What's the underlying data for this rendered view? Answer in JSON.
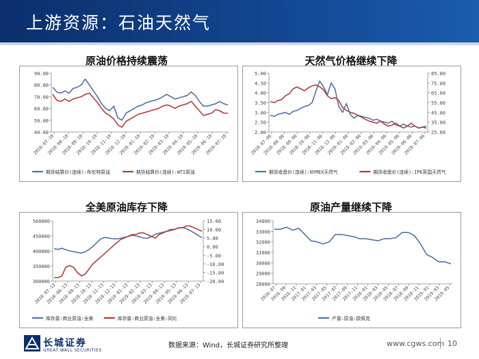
{
  "header": {
    "title": "上游资源：石油天然气"
  },
  "colors": {
    "blue": "#4e72a6",
    "red": "#b43b3b",
    "header": "#12458f"
  },
  "chart_data": [
    {
      "id": "c1",
      "type": "line",
      "title": "原油价格持续震荡",
      "x_ticks": [
        "2018-07-10",
        "2018-08-10",
        "2018-09-10",
        "2018-10-10",
        "2018-11-10",
        "2018-12-10",
        "2019-01-10",
        "2019-02-10",
        "2019-03-10",
        "2019-04-10",
        "2019-05-10",
        "2019-06-10",
        "2019-07-10"
      ],
      "y_ticks": [
        "40.00",
        "50.00",
        "60.00",
        "70.00",
        "80.00",
        "90.00"
      ],
      "ylim": [
        40,
        90
      ],
      "series": [
        {
          "name": "期货结算价(连续):布伦特原油",
          "color": "#4e72a6",
          "values": [
            78,
            74,
            73,
            75,
            73,
            77,
            78,
            80,
            85,
            80,
            75,
            70,
            64,
            60,
            58,
            62,
            52,
            50,
            56,
            58,
            60,
            62,
            63,
            65,
            66,
            67,
            68,
            70,
            72,
            70,
            68,
            69,
            70,
            71,
            74,
            71,
            66,
            62,
            62,
            63,
            64,
            66,
            64,
            63
          ]
        },
        {
          "name": "期货结算价(连续):WTI原油",
          "color": "#b43b3b",
          "values": [
            72,
            67,
            66,
            68,
            66,
            68,
            69,
            70,
            72,
            73,
            69,
            65,
            60,
            56,
            54,
            51,
            46,
            44,
            49,
            51,
            53,
            55,
            56,
            57,
            58,
            59,
            60,
            62,
            63,
            62,
            60,
            62,
            63,
            64,
            66,
            62,
            58,
            54,
            55,
            56,
            59,
            58,
            56,
            56
          ]
        }
      ]
    },
    {
      "id": "c2",
      "type": "line",
      "title": "天然气价格继续下降",
      "x_ticks": [
        "2018-07-06",
        "2018-08-06",
        "2018-09-06",
        "2018-10-06",
        "2018-11-06",
        "2018-12-06",
        "2019-01-06",
        "2019-02-06",
        "2019-03-06",
        "2019-04-06",
        "2019-05-06",
        "2019-06-06",
        "2019-07-06"
      ],
      "y_ticks_left": [
        "2.00",
        "2.50",
        "3.00",
        "3.50",
        "4.00",
        "4.50",
        "5.00"
      ],
      "y_ticks_right": [
        "25.00",
        "35.00",
        "45.00",
        "55.00",
        "65.00",
        "75.00",
        "85.00"
      ],
      "ylim_left": [
        2,
        5
      ],
      "ylim_right": [
        25,
        85
      ],
      "series": [
        {
          "name": "期货收盘价(连续):NYMEX天然气",
          "color": "#4e72a6",
          "axis": "left",
          "values": [
            2.85,
            2.8,
            2.9,
            2.95,
            3.0,
            2.9,
            3.05,
            3.1,
            3.2,
            3.3,
            3.35,
            3.5,
            4.1,
            4.6,
            4.3,
            3.9,
            4.5,
            4.2,
            3.3,
            3.0,
            3.45,
            2.9,
            2.7,
            2.85,
            2.8,
            2.75,
            2.7,
            2.6,
            2.65,
            2.55,
            2.5,
            2.45,
            2.55,
            2.35,
            2.3,
            2.4,
            2.3,
            2.25,
            2.3,
            2.2,
            2.25,
            2.3
          ]
        },
        {
          "name": "期货收盘价(连续):IPE英国天然气",
          "color": "#b43b3b",
          "axis": "right",
          "values": [
            56,
            55,
            57,
            58,
            62,
            64,
            69,
            71,
            69,
            67,
            70,
            72,
            73,
            71,
            68,
            62,
            59,
            60,
            57,
            50,
            47,
            45,
            44,
            42,
            40,
            38,
            36,
            35,
            34,
            36,
            33,
            31,
            32,
            34,
            31,
            29,
            31,
            34,
            31,
            29,
            30,
            29
          ]
        }
      ]
    },
    {
      "id": "c3",
      "type": "line",
      "title": "全美原油库存下降",
      "x_ticks": [
        "2018-07-13",
        "2018-08-13",
        "2018-09-13",
        "2018-10-13",
        "2018-11-13",
        "2018-12-13",
        "2019-01-13",
        "2019-02-13",
        "2019-03-13",
        "2019-04-13",
        "2019-05-13",
        "2019-06-13",
        "2019-07-13"
      ],
      "y_ticks_left": [
        "300000",
        "350000",
        "400000",
        "450000",
        "500000"
      ],
      "y_ticks_right": [
        "-20.00",
        "-15.00",
        "-10.00",
        "-5.00",
        "0.00",
        "5.00",
        "10.00",
        "15.00"
      ],
      "ylim_left": [
        300000,
        500000
      ],
      "ylim_right": [
        -20,
        15
      ],
      "series": [
        {
          "name": "库存量:商业原油:全美",
          "color": "#4e72a6",
          "axis": "left",
          "values": [
            408000,
            405000,
            409000,
            404000,
            400000,
            398000,
            395000,
            393000,
            397000,
            405000,
            415000,
            428000,
            440000,
            445000,
            443000,
            441000,
            440000,
            442000,
            445000,
            448000,
            452000,
            450000,
            447000,
            443000,
            442000,
            448000,
            455000,
            459000,
            462000,
            465000,
            468000,
            472000,
            476000,
            478000,
            474000,
            468000,
            460000,
            452000,
            444000
          ]
        },
        {
          "name": "库存量:商业原油:全美:同比",
          "color": "#b43b3b",
          "axis": "right",
          "values": [
            -18,
            -18,
            -17,
            -12,
            -11,
            -12,
            -15,
            -17,
            -16,
            -13,
            -10,
            -8,
            -6,
            -4,
            -2,
            0,
            2,
            4,
            5,
            6,
            7,
            7,
            8,
            8,
            7,
            6,
            5,
            7,
            8,
            9,
            10,
            10,
            11,
            11,
            12,
            12,
            11,
            10,
            9
          ]
        }
      ]
    },
    {
      "id": "c4",
      "type": "line",
      "title": "原油产量继续下降",
      "x_ticks": [
        "2016-07",
        "2016-09",
        "2016-11",
        "2017-01",
        "2017-03",
        "2017-05",
        "2017-07",
        "2017-09",
        "2017-11",
        "2018-01",
        "2018-03",
        "2018-05",
        "2018-07",
        "2018-09",
        "2018-11",
        "2019-01",
        "2019-03",
        "2019-05"
      ],
      "y_ticks": [
        "28000",
        "29000",
        "30000",
        "31000",
        "32000",
        "33000",
        "34000"
      ],
      "ylim": [
        28000,
        34000
      ],
      "series": [
        {
          "name": "产量:原油:欧佩克",
          "color": "#4e72a6",
          "values": [
            33200,
            33200,
            33400,
            33100,
            33300,
            32700,
            32100,
            32000,
            31800,
            32000,
            32700,
            32700,
            32600,
            32500,
            32300,
            32300,
            32200,
            32100,
            32300,
            32300,
            32400,
            32900,
            32900,
            32600,
            31800,
            30800,
            30500,
            30100,
            30100,
            29900
          ]
        }
      ]
    }
  ],
  "footer": {
    "logo_cn": "长城证券",
    "logo_en": "GREAT WALL SECURITIES",
    "source": "数据来源：Wind，长城证券研究所整理",
    "site": "www.cgws.com",
    "page": "10"
  }
}
